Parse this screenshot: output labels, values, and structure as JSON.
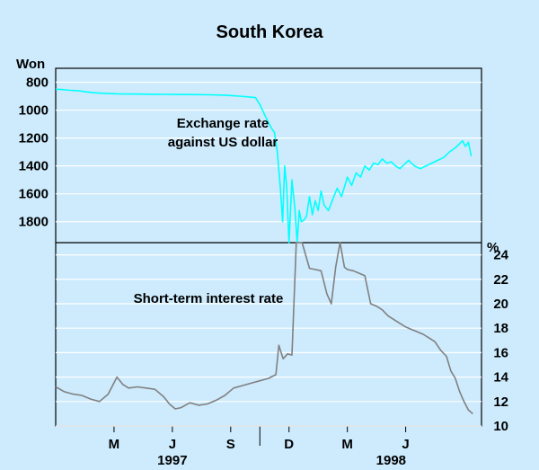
{
  "chart_data": {
    "type": "line",
    "title": "South Korea",
    "panels": [
      {
        "name": "exchange-panel",
        "axis_side": "left",
        "unit_label": "Won",
        "inverted": true,
        "ylim": [
          700,
          1950
        ],
        "yticks": [
          "800",
          "1000",
          "1200",
          "1400",
          "1600",
          "1800"
        ],
        "ytick_values": [
          800,
          1000,
          1200,
          1400,
          1600,
          1800
        ],
        "series": [
          {
            "label": "Exchange rate against US dollar",
            "label_lines": [
              "Exchange rate",
              "against US dollar"
            ],
            "color": "#00ffff",
            "x": [
              0,
              0.2,
              0.5,
              0.8,
              1,
              1.3,
              1.7,
              2.1,
              2.5,
              2.9,
              3.3,
              3.7,
              4.1,
              4.5,
              4.9,
              5.3,
              5.7,
              6.0,
              6.3,
              6.6,
              6.85,
              7.0,
              7.2,
              7.4,
              7.5,
              7.6,
              7.7,
              7.78,
              7.85,
              7.92,
              8.0,
              8.1,
              8.2,
              8.28,
              8.35,
              8.42,
              8.5,
              8.6,
              8.7,
              8.8,
              8.9,
              9.0,
              9.1,
              9.2,
              9.35,
              9.5,
              9.65,
              9.8,
              10.0,
              10.15,
              10.3,
              10.45,
              10.6,
              10.75,
              10.9,
              11.05,
              11.2,
              11.35,
              11.5,
              11.65,
              11.8,
              11.95,
              12.1,
              12.3,
              12.5,
              12.7,
              12.9,
              13.1,
              13.3,
              13.5,
              13.7,
              13.85,
              13.95,
              14.05,
              14.15,
              14.25
            ],
            "y": [
              850,
              852,
              858,
              862,
              868,
              875,
              880,
              883,
              884,
              885,
              886,
              887,
              888,
              888,
              889,
              890,
              892,
              895,
              900,
              905,
              910,
              960,
              1050,
              1130,
              1160,
              1300,
              1550,
              1800,
              1400,
              1550,
              1950,
              1500,
              1700,
              1950,
              1720,
              1800,
              1790,
              1760,
              1620,
              1750,
              1650,
              1720,
              1580,
              1680,
              1720,
              1640,
              1560,
              1620,
              1480,
              1540,
              1450,
              1480,
              1400,
              1430,
              1380,
              1390,
              1350,
              1380,
              1370,
              1400,
              1420,
              1390,
              1360,
              1400,
              1420,
              1400,
              1380,
              1360,
              1340,
              1300,
              1270,
              1240,
              1220,
              1260,
              1230,
              1330
            ]
          }
        ]
      },
      {
        "name": "interest-panel",
        "axis_side": "right",
        "unit_label": "%",
        "inverted": false,
        "ylim": [
          10,
          25
        ],
        "yticks": [
          "10",
          "12",
          "14",
          "16",
          "18",
          "20",
          "22",
          "24"
        ],
        "ytick_values": [
          10,
          12,
          14,
          16,
          18,
          20,
          22,
          24
        ],
        "series": [
          {
            "label": "Short-term interest rate",
            "color": "#808080",
            "x": [
              0,
              0.3,
              0.6,
              0.9,
              1.2,
              1.5,
              1.8,
              1.95,
              2.1,
              2.3,
              2.5,
              2.8,
              3.1,
              3.4,
              3.7,
              3.9,
              4.1,
              4.3,
              4.6,
              4.9,
              5.2,
              5.5,
              5.8,
              6.1,
              6.4,
              6.7,
              7.0,
              7.3,
              7.55,
              7.65,
              7.8,
              7.95,
              8.1,
              8.25,
              8.3,
              8.45,
              8.7,
              8.9,
              9.1,
              9.3,
              9.45,
              9.6,
              9.75,
              9.9,
              10.0,
              10.2,
              10.4,
              10.6,
              10.8,
              11.0,
              11.2,
              11.4,
              11.6,
              11.8,
              12.0,
              12.2,
              12.4,
              12.6,
              12.8,
              13.0,
              13.2,
              13.4,
              13.55,
              13.7,
              13.85,
              14.0,
              14.15,
              14.3
            ],
            "y": [
              13.2,
              12.8,
              12.6,
              12.5,
              12.2,
              12.0,
              12.6,
              13.3,
              14.0,
              13.4,
              13.1,
              13.2,
              13.1,
              13.0,
              12.4,
              11.8,
              11.4,
              11.5,
              11.9,
              11.7,
              11.8,
              12.1,
              12.5,
              13.1,
              13.3,
              13.5,
              13.7,
              13.9,
              14.2,
              16.6,
              15.5,
              15.9,
              15.8,
              25.0,
              25.0,
              25.0,
              22.9,
              22.8,
              22.7,
              20.8,
              20.0,
              23.0,
              25.0,
              23.0,
              22.8,
              22.7,
              22.5,
              22.3,
              20.0,
              19.8,
              19.5,
              19.0,
              18.7,
              18.4,
              18.1,
              17.9,
              17.7,
              17.5,
              17.2,
              16.9,
              16.2,
              15.7,
              14.5,
              13.9,
              12.8,
              12.0,
              11.3,
              11.0
            ]
          }
        ]
      }
    ],
    "x_axis": {
      "months": [
        "M",
        "J",
        "S",
        "D",
        "M",
        "J"
      ],
      "month_positions": [
        2,
        4,
        6,
        8,
        10,
        12
      ],
      "years": [
        "1997",
        "1998"
      ],
      "year_positions": [
        4,
        11.5
      ],
      "xlim": [
        0,
        14.6
      ]
    },
    "grid": true
  }
}
